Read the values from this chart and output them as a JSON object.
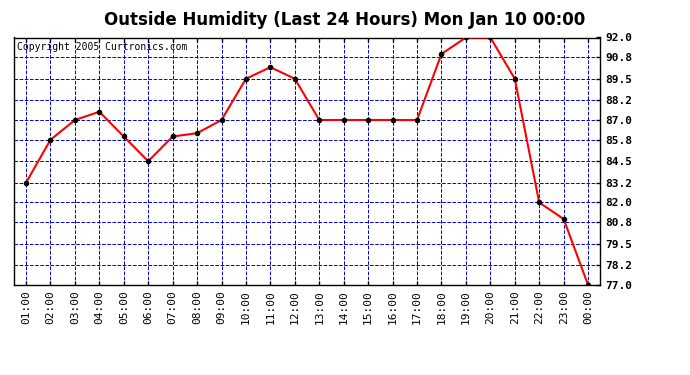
{
  "title": "Outside Humidity (Last 24 Hours) Mon Jan 10 00:00",
  "copyright": "Copyright 2005 Curtronics.com",
  "x_labels": [
    "01:00",
    "02:00",
    "03:00",
    "04:00",
    "05:00",
    "06:00",
    "07:00",
    "08:00",
    "09:00",
    "10:00",
    "11:00",
    "12:00",
    "13:00",
    "14:00",
    "15:00",
    "16:00",
    "17:00",
    "18:00",
    "19:00",
    "20:00",
    "21:00",
    "22:00",
    "23:00",
    "00:00"
  ],
  "x_values": [
    1,
    2,
    3,
    4,
    5,
    6,
    7,
    8,
    9,
    10,
    11,
    12,
    13,
    14,
    15,
    16,
    17,
    18,
    19,
    20,
    21,
    22,
    23,
    24
  ],
  "y_values": [
    83.2,
    85.8,
    87.0,
    87.5,
    86.0,
    84.5,
    86.0,
    86.2,
    87.0,
    89.5,
    90.2,
    89.5,
    87.0,
    87.0,
    87.0,
    87.0,
    87.0,
    91.0,
    92.0,
    92.0,
    89.5,
    82.0,
    81.0,
    77.0
  ],
  "ylim": [
    77.0,
    92.0
  ],
  "yticks": [
    77.0,
    78.2,
    79.5,
    80.8,
    82.0,
    83.2,
    84.5,
    85.8,
    87.0,
    88.2,
    89.5,
    90.8,
    92.0
  ],
  "line_color": "red",
  "marker_color": "black",
  "marker_style": "o",
  "marker_size": 3,
  "fig_bg_color": "#ffffff",
  "plot_bg_color": "#ffffff",
  "grid_color": "#0000cc",
  "title_fontsize": 12,
  "title_fontweight": "bold",
  "copyright_fontsize": 7,
  "tick_fontsize": 8,
  "border_color": "#000000"
}
